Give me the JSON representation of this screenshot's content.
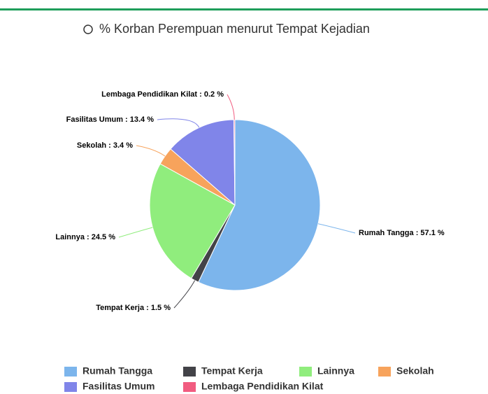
{
  "chart_data": {
    "type": "pie",
    "title": "% Korban Perempuan menurut Tempat Kejadian",
    "categories": [
      "Rumah Tangga",
      "Tempat Kerja",
      "Lainnya",
      "Sekolah",
      "Fasilitas Umum",
      "Lembaga Pendidikan Kilat"
    ],
    "values": [
      57.1,
      1.5,
      24.5,
      3.4,
      13.4,
      0.2
    ],
    "value_labels": [
      "Rumah Tangga : 57.1 %",
      "Tempat Kerja : 1.5 %",
      "Lainnya : 24.5 %",
      "Sekolah : 3.4 %",
      "Fasilitas Umum : 13.4 %",
      "Lembaga Pendidikan Kilat : 0.2 %"
    ],
    "colors": [
      "#7cb5ec",
      "#434348",
      "#90ed7d",
      "#f7a35c",
      "#8085e9",
      "#f15c80"
    ],
    "legend": "bottom"
  }
}
